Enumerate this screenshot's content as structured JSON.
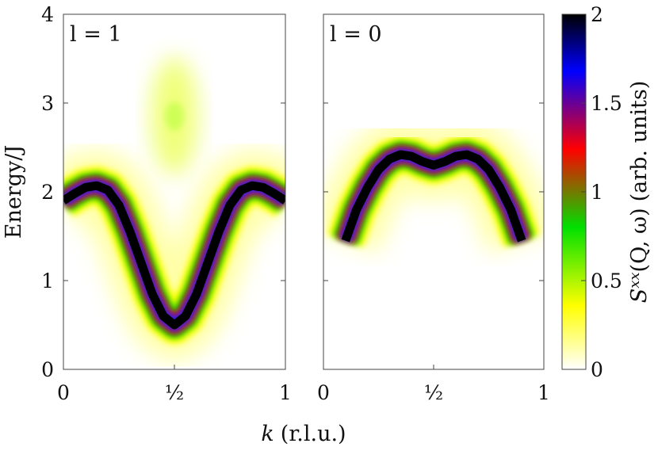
{
  "chart_data": {
    "type": "heatmap",
    "xlabel_var": "k",
    "xlabel_unit": "(r.l.u.)",
    "ylabel": "Energy/J",
    "ylim": [
      0,
      4
    ],
    "xlim": [
      0,
      1
    ],
    "y_ticks": [
      "0",
      "1",
      "2",
      "3",
      "4"
    ],
    "x_ticks": [
      "0",
      "½",
      "1"
    ],
    "x_tick_values": [
      0,
      0.5,
      1
    ],
    "panels": [
      {
        "label": "l = 1",
        "dispersion": {
          "k": [
            0.0,
            0.05,
            0.1,
            0.15,
            0.2,
            0.25,
            0.3,
            0.35,
            0.4,
            0.45,
            0.5,
            0.55,
            0.6,
            0.65,
            0.7,
            0.75,
            0.8,
            0.85,
            0.9,
            0.95,
            1.0
          ],
          "energy": [
            1.9,
            1.98,
            2.05,
            2.07,
            2.02,
            1.85,
            1.55,
            1.2,
            0.85,
            0.6,
            0.5,
            0.6,
            0.85,
            1.2,
            1.55,
            1.85,
            2.02,
            2.07,
            2.05,
            1.98,
            1.9
          ]
        },
        "continuum": {
          "k_center": 0.5,
          "energy_center": 2.85,
          "note": "weak feature"
        }
      },
      {
        "label": "l = 0",
        "dispersion": {
          "k": [
            0.1,
            0.15,
            0.2,
            0.25,
            0.3,
            0.35,
            0.4,
            0.45,
            0.5,
            0.55,
            0.6,
            0.65,
            0.7,
            0.75,
            0.8,
            0.85,
            0.9
          ],
          "energy": [
            1.45,
            1.8,
            2.05,
            2.25,
            2.37,
            2.42,
            2.4,
            2.34,
            2.3,
            2.34,
            2.4,
            2.42,
            2.37,
            2.25,
            2.05,
            1.8,
            1.45
          ]
        }
      }
    ],
    "colorbar": {
      "label_var": "S",
      "label_sup": "xx",
      "label_args": "(Q, ω)",
      "label_unit": "(arb. units)",
      "range": [
        0,
        2
      ],
      "ticks": [
        "0",
        "0.5",
        "1",
        "1.5",
        "2"
      ],
      "tick_values": [
        0,
        0.5,
        1,
        1.5,
        2
      ],
      "colors": [
        "#ffffff",
        "#ffff00",
        "#00e000",
        "#ff0000",
        "#0000ff",
        "#000000"
      ],
      "color_stops": [
        0,
        0.18,
        0.4,
        0.62,
        0.84,
        1
      ]
    }
  }
}
